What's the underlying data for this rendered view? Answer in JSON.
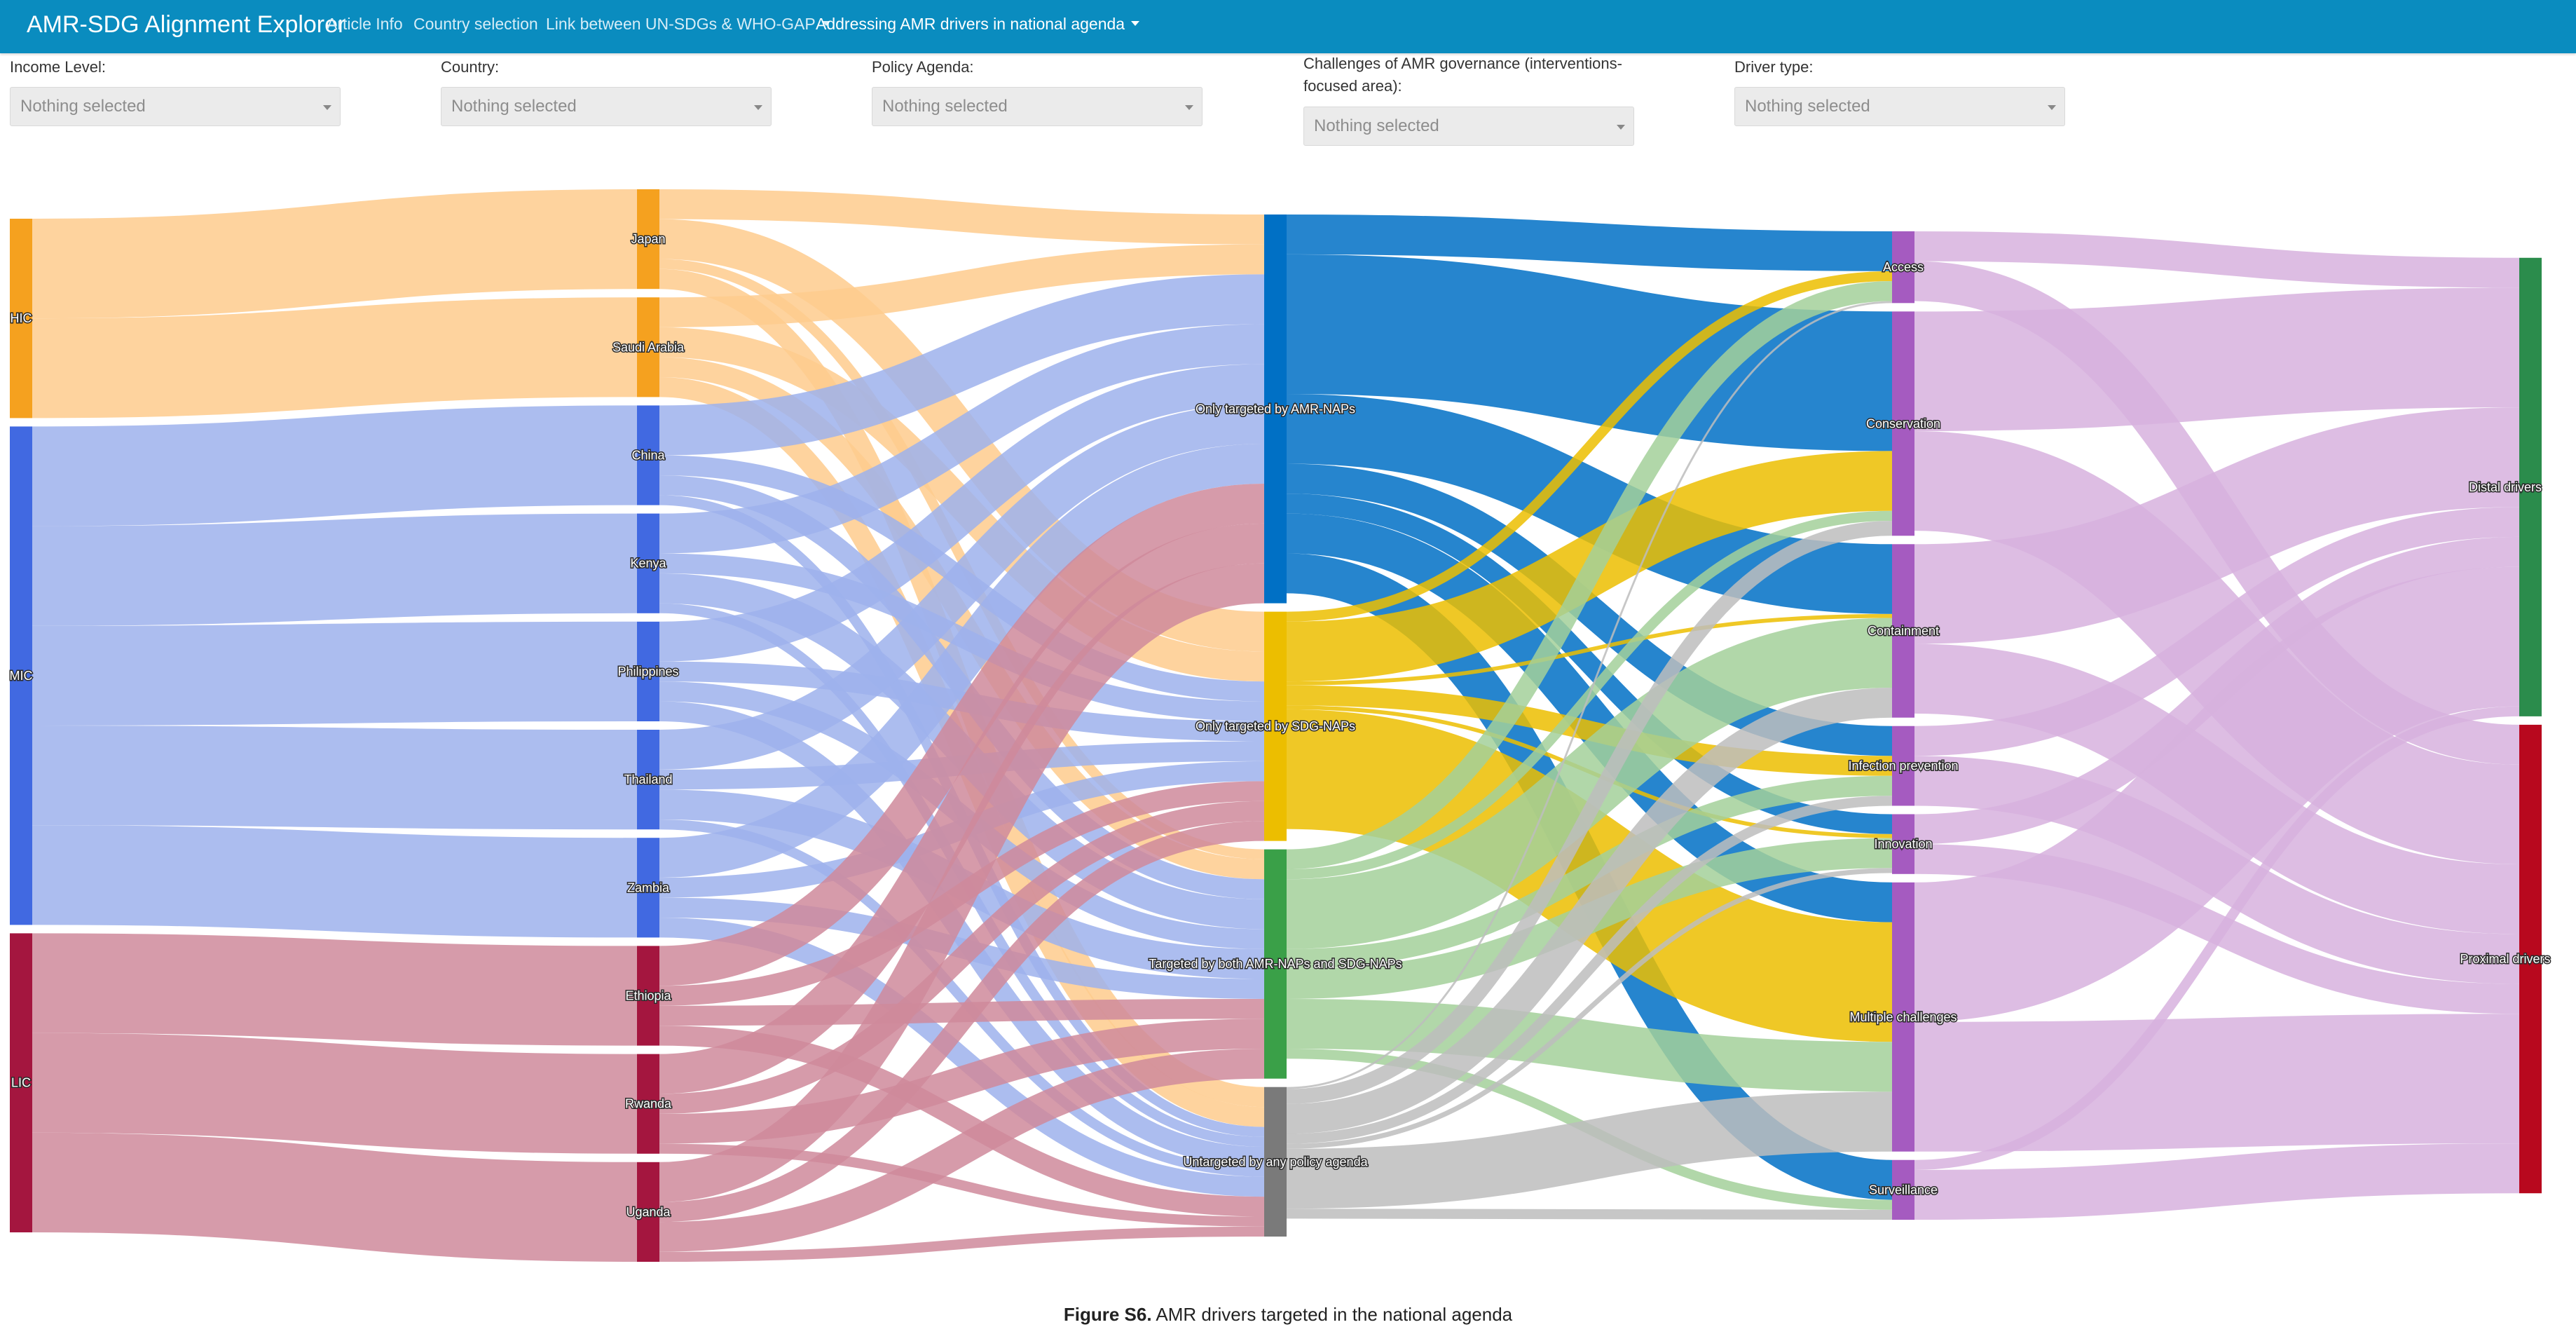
{
  "navbar": {
    "brand": "AMR-SDG Alignment Explorer",
    "items": [
      "Article Info",
      "Country selection",
      "Link between UN-SDGs & WHO-GAP",
      "Addressing AMR drivers in national agenda"
    ]
  },
  "filters": [
    {
      "label": "Income Level:",
      "value": "Nothing selected"
    },
    {
      "label": "Country:",
      "value": "Nothing selected"
    },
    {
      "label": "Policy Agenda:",
      "value": "Nothing selected"
    },
    {
      "label": "Challenges of AMR governance (interventions-focused area):",
      "value": "Nothing selected"
    },
    {
      "label": "Driver type:",
      "value": "Nothing selected"
    }
  ],
  "caption": {
    "prefix": "Figure S6.",
    "text": " AMR drivers targeted in the national agenda"
  },
  "chart_data": {
    "type": "sankey",
    "title": "AMR drivers targeted in the national agenda",
    "columns": [
      [
        "HIC",
        "MIC",
        "LIC"
      ],
      [
        "Japan",
        "Saudi Arabia",
        "China",
        "Kenya",
        "Philippines",
        "Thailand",
        "Zambia",
        "Ethiopia",
        "Rwanda",
        "Uganda"
      ],
      [
        "Only targeted by AMR-NAPs",
        "Only targeted by SDG-NAPs",
        "Targeted by both AMR-NAPs and SDG-NAPs",
        "Untargeted by any policy agenda"
      ],
      [
        "Access",
        "Conservation",
        "Containment",
        "Infection prevention",
        "Innovation",
        "Multiple challenges",
        "Surveillance"
      ],
      [
        "Distal drivers",
        "Proximal drivers"
      ]
    ],
    "node_colors": {
      "HIC": "#f5a11f",
      "MIC": "#4169e1",
      "LIC": "#a4163f",
      "Japan": "#f5a11f",
      "Saudi Arabia": "#f5a11f",
      "China": "#4169e1",
      "Kenya": "#4169e1",
      "Philippines": "#4169e1",
      "Thailand": "#4169e1",
      "Zambia": "#4169e1",
      "Ethiopia": "#a4163f",
      "Rwanda": "#a4163f",
      "Uganda": "#a4163f",
      "Only targeted by AMR-NAPs": "#0070c5",
      "Only targeted by SDG-NAPs": "#ecbe00",
      "Targeted by both AMR-NAPs and SDG-NAPs": "#3aa048",
      "Untargeted by any policy agenda": "#7a7a7a",
      "Access": "#a55bc0",
      "Conservation": "#a55bc0",
      "Containment": "#a55bc0",
      "Infection prevention": "#a55bc0",
      "Innovation": "#a55bc0",
      "Multiple challenges": "#a55bc0",
      "Surveillance": "#a55bc0",
      "Distal drivers": "#2b8c4c",
      "Proximal drivers": "#b8081e"
    },
    "link_colors": {
      "HIC": "#fecb8d",
      "MIC": "#9db2ec",
      "LIC": "#cf8a9b",
      "Japan": "#fecb8d",
      "Saudi Arabia": "#fecb8d",
      "China": "#9db2ec",
      "Kenya": "#9db2ec",
      "Philippines": "#9db2ec",
      "Thailand": "#9db2ec",
      "Zambia": "#9db2ec",
      "Ethiopia": "#cf8a9b",
      "Rwanda": "#cf8a9b",
      "Uganda": "#cf8a9b",
      "Only targeted by AMR-NAPs": "#0070c5",
      "Only targeted by SDG-NAPs": "#ecbe00",
      "Targeted by both AMR-NAPs and SDG-NAPs": "#a3d09a",
      "Untargeted by any policy agenda": "#bdbdbd",
      "Access": "#d7b1de",
      "Conservation": "#d7b1de",
      "Containment": "#d7b1de",
      "Infection prevention": "#d7b1de",
      "Innovation": "#d7b1de",
      "Multiple challenges": "#d7b1de",
      "Surveillance": "#d7b1de"
    },
    "links": [
      {
        "source": "HIC",
        "target": "Japan",
        "value": 10
      },
      {
        "source": "HIC",
        "target": "Saudi Arabia",
        "value": 10
      },
      {
        "source": "MIC",
        "target": "China",
        "value": 10
      },
      {
        "source": "MIC",
        "target": "Kenya",
        "value": 10
      },
      {
        "source": "MIC",
        "target": "Philippines",
        "value": 10
      },
      {
        "source": "MIC",
        "target": "Thailand",
        "value": 10
      },
      {
        "source": "MIC",
        "target": "Zambia",
        "value": 10
      },
      {
        "source": "LIC",
        "target": "Ethiopia",
        "value": 10
      },
      {
        "source": "LIC",
        "target": "Rwanda",
        "value": 10
      },
      {
        "source": "LIC",
        "target": "Uganda",
        "value": 10
      },
      {
        "source": "Japan",
        "target": "Only targeted by AMR-NAPs",
        "value": 3
      },
      {
        "source": "Japan",
        "target": "Only targeted by SDG-NAPs",
        "value": 4
      },
      {
        "source": "Japan",
        "target": "Targeted by both AMR-NAPs and SDG-NAPs",
        "value": 1
      },
      {
        "source": "Japan",
        "target": "Untargeted by any policy agenda",
        "value": 2
      },
      {
        "source": "Saudi Arabia",
        "target": "Only targeted by AMR-NAPs",
        "value": 3
      },
      {
        "source": "Saudi Arabia",
        "target": "Only targeted by SDG-NAPs",
        "value": 3
      },
      {
        "source": "Saudi Arabia",
        "target": "Targeted by both AMR-NAPs and SDG-NAPs",
        "value": 2
      },
      {
        "source": "Saudi Arabia",
        "target": "Untargeted by any policy agenda",
        "value": 2
      },
      {
        "source": "China",
        "target": "Only targeted by AMR-NAPs",
        "value": 5
      },
      {
        "source": "China",
        "target": "Only targeted by SDG-NAPs",
        "value": 2
      },
      {
        "source": "China",
        "target": "Targeted by both AMR-NAPs and SDG-NAPs",
        "value": 2
      },
      {
        "source": "China",
        "target": "Untargeted by any policy agenda",
        "value": 1
      },
      {
        "source": "Kenya",
        "target": "Only targeted by AMR-NAPs",
        "value": 4
      },
      {
        "source": "Kenya",
        "target": "Only targeted by SDG-NAPs",
        "value": 2
      },
      {
        "source": "Kenya",
        "target": "Targeted by both AMR-NAPs and SDG-NAPs",
        "value": 3
      },
      {
        "source": "Kenya",
        "target": "Untargeted by any policy agenda",
        "value": 1
      },
      {
        "source": "Philippines",
        "target": "Only targeted by AMR-NAPs",
        "value": 4
      },
      {
        "source": "Philippines",
        "target": "Only targeted by SDG-NAPs",
        "value": 2
      },
      {
        "source": "Philippines",
        "target": "Targeted by both AMR-NAPs and SDG-NAPs",
        "value": 2
      },
      {
        "source": "Philippines",
        "target": "Untargeted by any policy agenda",
        "value": 2
      },
      {
        "source": "Thailand",
        "target": "Only targeted by AMR-NAPs",
        "value": 4
      },
      {
        "source": "Thailand",
        "target": "Only targeted by SDG-NAPs",
        "value": 2
      },
      {
        "source": "Thailand",
        "target": "Targeted by both AMR-NAPs and SDG-NAPs",
        "value": 3
      },
      {
        "source": "Thailand",
        "target": "Untargeted by any policy agenda",
        "value": 1
      },
      {
        "source": "Zambia",
        "target": "Only targeted by AMR-NAPs",
        "value": 4
      },
      {
        "source": "Zambia",
        "target": "Only targeted by SDG-NAPs",
        "value": 2
      },
      {
        "source": "Zambia",
        "target": "Targeted by both AMR-NAPs and SDG-NAPs",
        "value": 2
      },
      {
        "source": "Zambia",
        "target": "Untargeted by any policy agenda",
        "value": 2
      },
      {
        "source": "Ethiopia",
        "target": "Only targeted by AMR-NAPs",
        "value": 4
      },
      {
        "source": "Ethiopia",
        "target": "Only targeted by SDG-NAPs",
        "value": 2
      },
      {
        "source": "Ethiopia",
        "target": "Targeted by both AMR-NAPs and SDG-NAPs",
        "value": 2
      },
      {
        "source": "Ethiopia",
        "target": "Untargeted by any policy agenda",
        "value": 2
      },
      {
        "source": "Rwanda",
        "target": "Only targeted by AMR-NAPs",
        "value": 4
      },
      {
        "source": "Rwanda",
        "target": "Only targeted by SDG-NAPs",
        "value": 2
      },
      {
        "source": "Rwanda",
        "target": "Targeted by both AMR-NAPs and SDG-NAPs",
        "value": 3
      },
      {
        "source": "Rwanda",
        "target": "Untargeted by any policy agenda",
        "value": 1
      },
      {
        "source": "Uganda",
        "target": "Only targeted by AMR-NAPs",
        "value": 4
      },
      {
        "source": "Uganda",
        "target": "Only targeted by SDG-NAPs",
        "value": 2
      },
      {
        "source": "Uganda",
        "target": "Targeted by both AMR-NAPs and SDG-NAPs",
        "value": 3
      },
      {
        "source": "Uganda",
        "target": "Untargeted by any policy agenda",
        "value": 1
      },
      {
        "source": "Only targeted by AMR-NAPs",
        "target": "Access",
        "value": 4
      },
      {
        "source": "Only targeted by AMR-NAPs",
        "target": "Conservation",
        "value": 14
      },
      {
        "source": "Only targeted by AMR-NAPs",
        "target": "Containment",
        "value": 7
      },
      {
        "source": "Only targeted by AMR-NAPs",
        "target": "Infection prevention",
        "value": 3
      },
      {
        "source": "Only targeted by AMR-NAPs",
        "target": "Innovation",
        "value": 2
      },
      {
        "source": "Only targeted by AMR-NAPs",
        "target": "Multiple challenges",
        "value": 4
      },
      {
        "source": "Only targeted by AMR-NAPs",
        "target": "Surveillance",
        "value": 4
      },
      {
        "source": "Only targeted by SDG-NAPs",
        "target": "Access",
        "value": 1
      },
      {
        "source": "Only targeted by SDG-NAPs",
        "target": "Conservation",
        "value": 6
      },
      {
        "source": "Only targeted by SDG-NAPs",
        "target": "Containment",
        "value": 0.4
      },
      {
        "source": "Only targeted by SDG-NAPs",
        "target": "Infection prevention",
        "value": 2
      },
      {
        "source": "Only targeted by SDG-NAPs",
        "target": "Innovation",
        "value": 0.4
      },
      {
        "source": "Only targeted by SDG-NAPs",
        "target": "Multiple challenges",
        "value": 12
      },
      {
        "source": "Targeted by both AMR-NAPs and SDG-NAPs",
        "target": "Access",
        "value": 2
      },
      {
        "source": "Targeted by both AMR-NAPs and SDG-NAPs",
        "target": "Conservation",
        "value": 1
      },
      {
        "source": "Targeted by both AMR-NAPs and SDG-NAPs",
        "target": "Containment",
        "value": 7
      },
      {
        "source": "Targeted by both AMR-NAPs and SDG-NAPs",
        "target": "Infection prevention",
        "value": 2
      },
      {
        "source": "Targeted by both AMR-NAPs and SDG-NAPs",
        "target": "Innovation",
        "value": 3
      },
      {
        "source": "Targeted by both AMR-NAPs and SDG-NAPs",
        "target": "Multiple challenges",
        "value": 5
      },
      {
        "source": "Targeted by both AMR-NAPs and SDG-NAPs",
        "target": "Surveillance",
        "value": 1
      },
      {
        "source": "Untargeted by any policy agenda",
        "target": "Access",
        "value": 0.2
      },
      {
        "source": "Untargeted by any policy agenda",
        "target": "Conservation",
        "value": 1.5
      },
      {
        "source": "Untargeted by any policy agenda",
        "target": "Containment",
        "value": 3
      },
      {
        "source": "Untargeted by any policy agenda",
        "target": "Infection prevention",
        "value": 1
      },
      {
        "source": "Untargeted by any policy agenda",
        "target": "Innovation",
        "value": 0.5
      },
      {
        "source": "Untargeted by any policy agenda",
        "target": "Multiple challenges",
        "value": 6
      },
      {
        "source": "Untargeted by any policy agenda",
        "target": "Surveillance",
        "value": 1
      },
      {
        "source": "Access",
        "target": "Distal drivers",
        "value": 3
      },
      {
        "source": "Access",
        "target": "Proximal drivers",
        "value": 4
      },
      {
        "source": "Conservation",
        "target": "Distal drivers",
        "value": 12
      },
      {
        "source": "Conservation",
        "target": "Proximal drivers",
        "value": 10
      },
      {
        "source": "Containment",
        "target": "Distal drivers",
        "value": 10
      },
      {
        "source": "Containment",
        "target": "Proximal drivers",
        "value": 7
      },
      {
        "source": "Infection prevention",
        "target": "Distal drivers",
        "value": 3
      },
      {
        "source": "Infection prevention",
        "target": "Proximal drivers",
        "value": 5
      },
      {
        "source": "Innovation",
        "target": "Distal drivers",
        "value": 3
      },
      {
        "source": "Innovation",
        "target": "Proximal drivers",
        "value": 3
      },
      {
        "source": "Multiple challenges",
        "target": "Distal drivers",
        "value": 14
      },
      {
        "source": "Multiple challenges",
        "target": "Proximal drivers",
        "value": 13
      },
      {
        "source": "Surveillance",
        "target": "Distal drivers",
        "value": 1
      },
      {
        "source": "Surveillance",
        "target": "Proximal drivers",
        "value": 5
      }
    ]
  }
}
